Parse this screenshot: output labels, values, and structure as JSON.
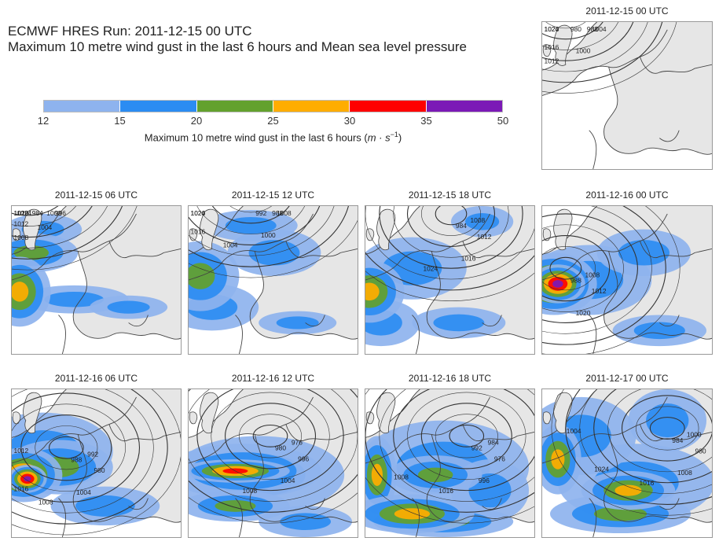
{
  "header": {
    "title_line1": "ECMWF HRES Run: 2011-12-15 00 UTC",
    "title_line2": "Maximum 10 metre wind gust in the last 6 hours and Mean sea level pressure"
  },
  "colorbar": {
    "ticks": [
      "12",
      "15",
      "20",
      "25",
      "30",
      "35",
      "50"
    ],
    "colors": [
      "#8eb3ee",
      "#2b8cf2",
      "#63a12d",
      "#ffad00",
      "#ff0000",
      "#7b19b6"
    ],
    "label_text": "Maximum 10 metre wind gust in the last 6 hours (",
    "label_unit": "m · s",
    "label_exp": "−1",
    "label_close": ")"
  },
  "colors": {
    "land": "#e6e6e6",
    "sea": "#ffffff",
    "isobar": "#333333",
    "coast": "#444444"
  },
  "panels": [
    {
      "time": "2011-12-15 00 UTC",
      "isobar_labels": [
        "980",
        "988",
        "1004",
        "1000",
        "1012",
        "1016",
        "1024",
        "1020"
      ]
    },
    {
      "time": "2011-12-15 06 UTC",
      "isobar_labels": [
        "984",
        "1000",
        "996",
        "1004",
        "1008",
        "1012",
        "1016",
        "1020",
        "1024"
      ]
    },
    {
      "time": "2011-12-15 12 UTC",
      "isobar_labels": [
        "992",
        "988",
        "1008",
        "1000",
        "1004",
        "1016",
        "1020",
        "1024"
      ]
    },
    {
      "time": "2011-12-15 18 UTC",
      "isobar_labels": [
        "984",
        "1008",
        "1012",
        "1016",
        "1024"
      ]
    },
    {
      "time": "2011-12-16 00 UTC",
      "isobar_labels": [
        "988",
        "1008",
        "1012",
        "1020"
      ]
    },
    {
      "time": "2011-12-16 06 UTC",
      "isobar_labels": [
        "988",
        "992",
        "980",
        "1004",
        "1008",
        "1016",
        "1012"
      ]
    },
    {
      "time": "2011-12-16 12 UTC",
      "isobar_labels": [
        "980",
        "976",
        "996",
        "1004",
        "1008"
      ]
    },
    {
      "time": "2011-12-16 18 UTC",
      "isobar_labels": [
        "992",
        "984",
        "976",
        "996",
        "1016",
        "1008"
      ]
    },
    {
      "time": "2011-12-17 00 UTC",
      "isobar_labels": [
        "984",
        "1000",
        "980",
        "1008",
        "1016",
        "1024",
        "1004"
      ]
    }
  ]
}
